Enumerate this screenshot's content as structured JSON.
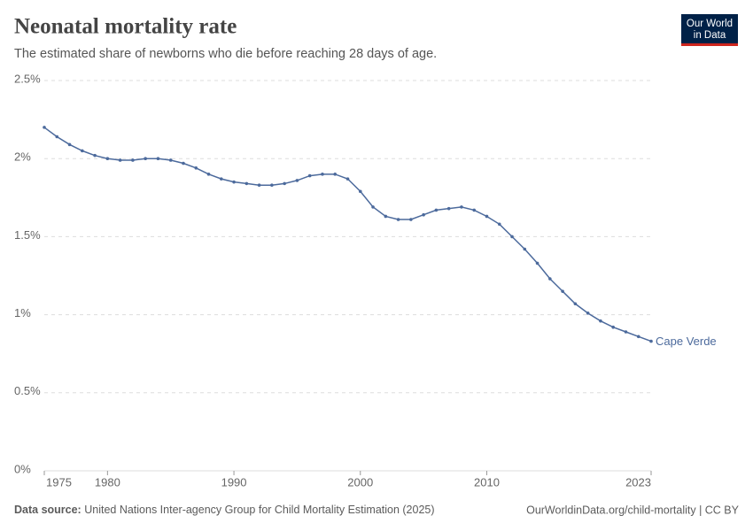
{
  "chart_data": {
    "type": "line",
    "title": "Neonatal mortality rate",
    "subtitle": "The estimated share of newborns who die before reaching 28 days of age.",
    "x": [
      1975,
      1976,
      1977,
      1978,
      1979,
      1980,
      1981,
      1982,
      1983,
      1984,
      1985,
      1986,
      1987,
      1988,
      1989,
      1990,
      1991,
      1992,
      1993,
      1994,
      1995,
      1996,
      1997,
      1998,
      1999,
      2000,
      2001,
      2002,
      2003,
      2004,
      2005,
      2006,
      2007,
      2008,
      2009,
      2010,
      2011,
      2012,
      2013,
      2014,
      2015,
      2016,
      2017,
      2018,
      2019,
      2020,
      2021,
      2022,
      2023
    ],
    "series": [
      {
        "name": "Cape Verde",
        "color": "#4c6a9c",
        "values": [
          2.2,
          2.14,
          2.09,
          2.05,
          2.02,
          2.0,
          1.99,
          1.99,
          2.0,
          2.0,
          1.99,
          1.97,
          1.94,
          1.9,
          1.87,
          1.85,
          1.84,
          1.83,
          1.83,
          1.84,
          1.86,
          1.89,
          1.9,
          1.9,
          1.87,
          1.79,
          1.69,
          1.63,
          1.61,
          1.61,
          1.64,
          1.67,
          1.68,
          1.69,
          1.67,
          1.63,
          1.58,
          1.5,
          1.42,
          1.33,
          1.23,
          1.15,
          1.07,
          1.01,
          0.96,
          0.92,
          0.89,
          0.86,
          0.83
        ]
      }
    ],
    "xlim": [
      1975,
      2023
    ],
    "xticks": [
      1975,
      1980,
      1990,
      2000,
      2010,
      2023
    ],
    "ylim": [
      0,
      2.5
    ],
    "yticks": [
      {
        "value": 0,
        "label": "0%"
      },
      {
        "value": 0.5,
        "label": "0.5%"
      },
      {
        "value": 1,
        "label": "1%"
      },
      {
        "value": 1.5,
        "label": "1.5%"
      },
      {
        "value": 2,
        "label": "2%"
      },
      {
        "value": 2.5,
        "label": "2.5%"
      }
    ],
    "grid": true,
    "source_label": "Data source:",
    "source": "United Nations Inter-agency Group for Child Mortality Estimation (2025)",
    "url": "OurWorldinData.org/child-mortality | CC BY"
  },
  "logo": [
    "Our World",
    "in Data"
  ]
}
